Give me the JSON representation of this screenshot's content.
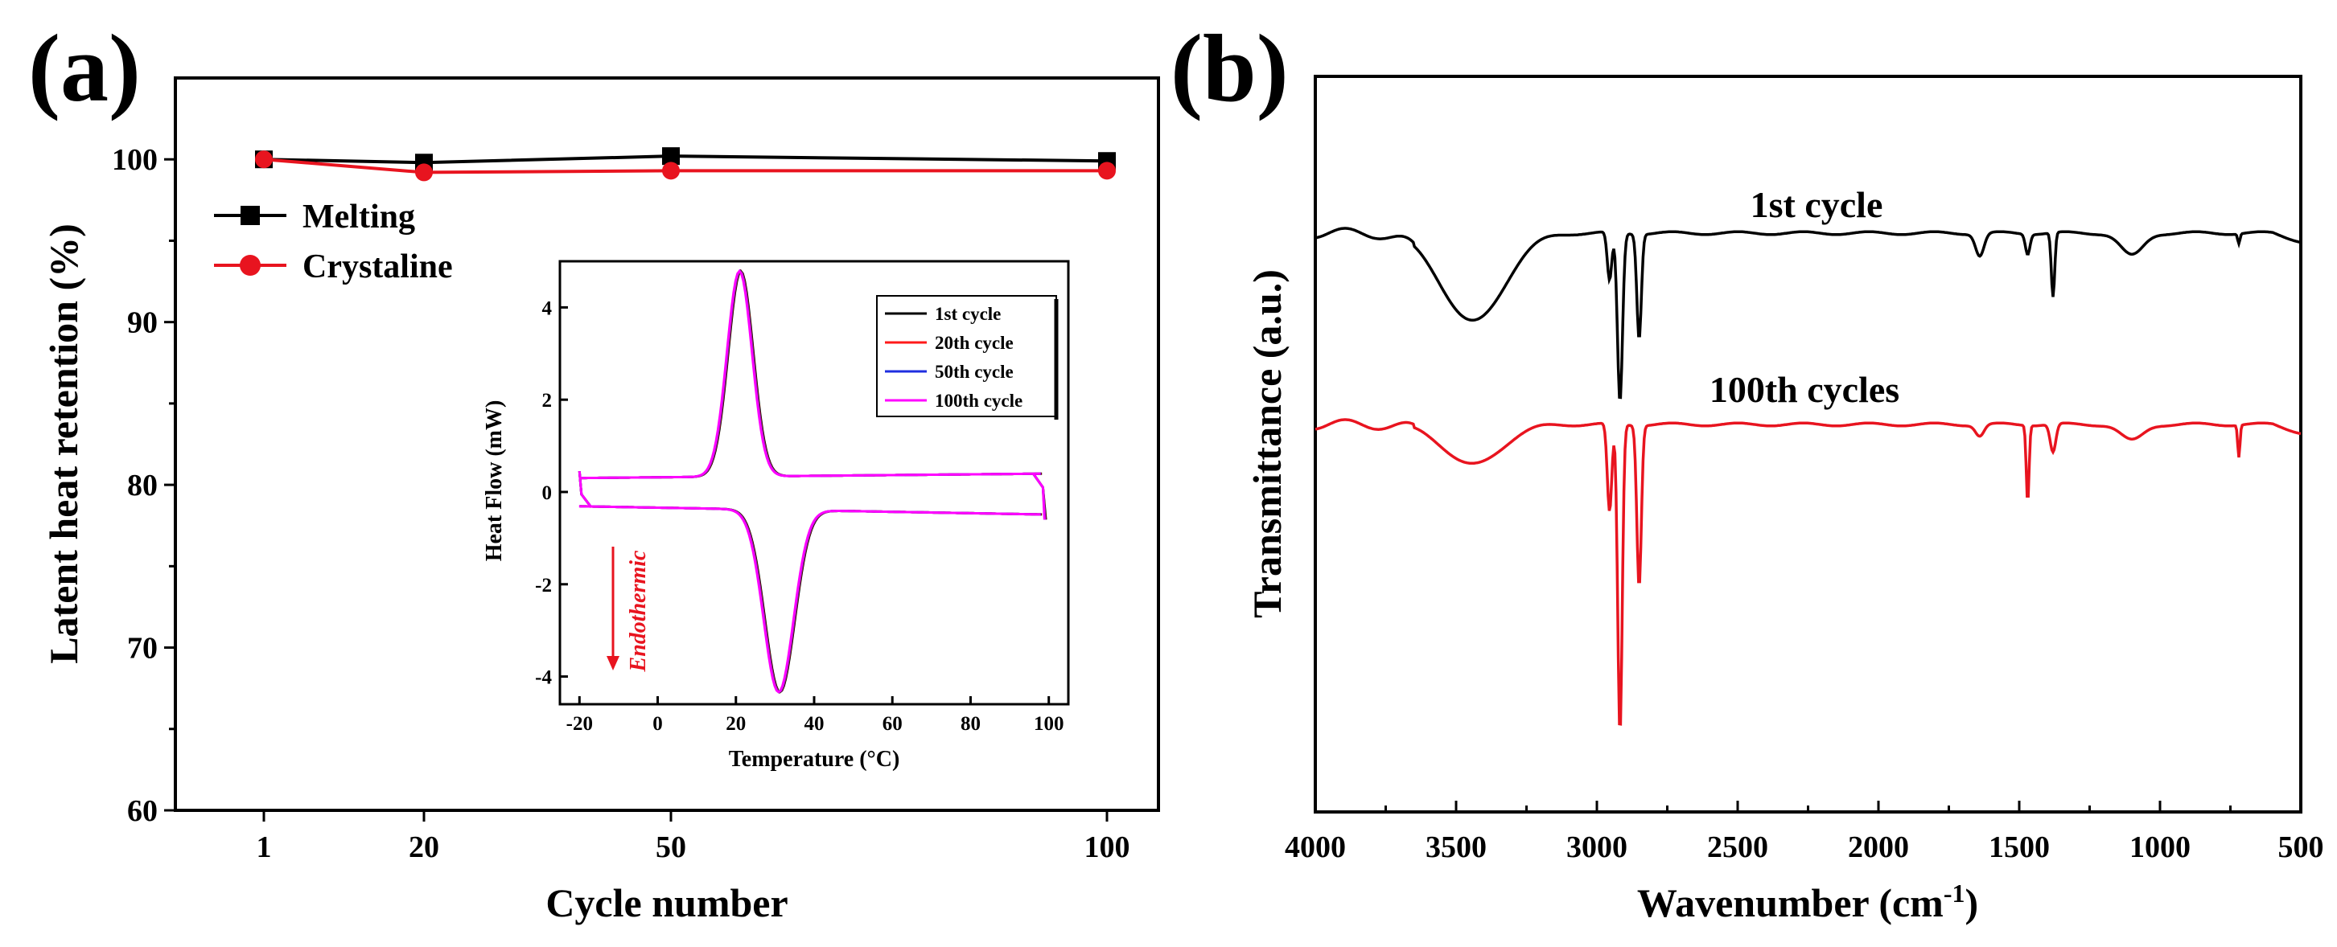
{
  "panel_a": {
    "label": "(a)",
    "chart_data": {
      "type": "line",
      "xlabel": "Cycle number",
      "ylabel": "Latent heat retention (%)",
      "categories": [
        "1",
        "20",
        "50",
        "100"
      ],
      "ylim": [
        60,
        105
      ],
      "yticks": [
        "60",
        "70",
        "80",
        "90",
        "100"
      ],
      "series": [
        {
          "name": "Melting",
          "color": "#000000",
          "marker": "square",
          "values": [
            100.0,
            99.8,
            100.2,
            99.9
          ]
        },
        {
          "name": "Crystaline",
          "color": "#e8141f",
          "marker": "circle",
          "values": [
            100.0,
            99.2,
            99.3,
            99.3
          ]
        }
      ]
    },
    "inset": {
      "chart_data": {
        "type": "line",
        "xlabel": "Temperature (°C)",
        "ylabel": "Heat Flow (mW)",
        "xlim": [
          -25,
          105
        ],
        "ylim": [
          -4.6,
          5.0
        ],
        "xticks": [
          "-20",
          "0",
          "20",
          "40",
          "60",
          "80",
          "100"
        ],
        "yticks": [
          "4",
          "2",
          "0",
          "-2",
          "-4"
        ],
        "series": [
          {
            "name": "1st cycle",
            "color": "#000000"
          },
          {
            "name": "20th cycle",
            "color": "#ff1a1a"
          },
          {
            "name": "50th cycle",
            "color": "#1f2ee0"
          },
          {
            "name": "100th cycle",
            "color": "#ff00ff"
          }
        ],
        "peaks": {
          "crystallization_temp": 21,
          "crystallization_peak_mw": 4.8,
          "melting_temp": 31,
          "melting_peak_mw": -4.4
        },
        "annotation": "Endothermic"
      }
    }
  },
  "panel_b": {
    "label": "(b)",
    "chart_data": {
      "type": "line",
      "xlabel": "Wavenumber (cm",
      "xlabel_sup": "-1",
      "xlabel_end": ")",
      "ylabel": "Transmittance (a.u.)",
      "xlim": [
        4000,
        500
      ],
      "xticks": [
        "4000",
        "3500",
        "3000",
        "2500",
        "2000",
        "1500",
        "1000",
        "500"
      ],
      "series": [
        {
          "name": "1st cycle",
          "color": "#000000"
        },
        {
          "name": "100th cycles",
          "color": "#e8141f"
        }
      ],
      "absorption_bands_cm1": [
        3440,
        2955,
        2918,
        2850,
        1640,
        1470,
        1380,
        1100,
        720
      ]
    }
  }
}
